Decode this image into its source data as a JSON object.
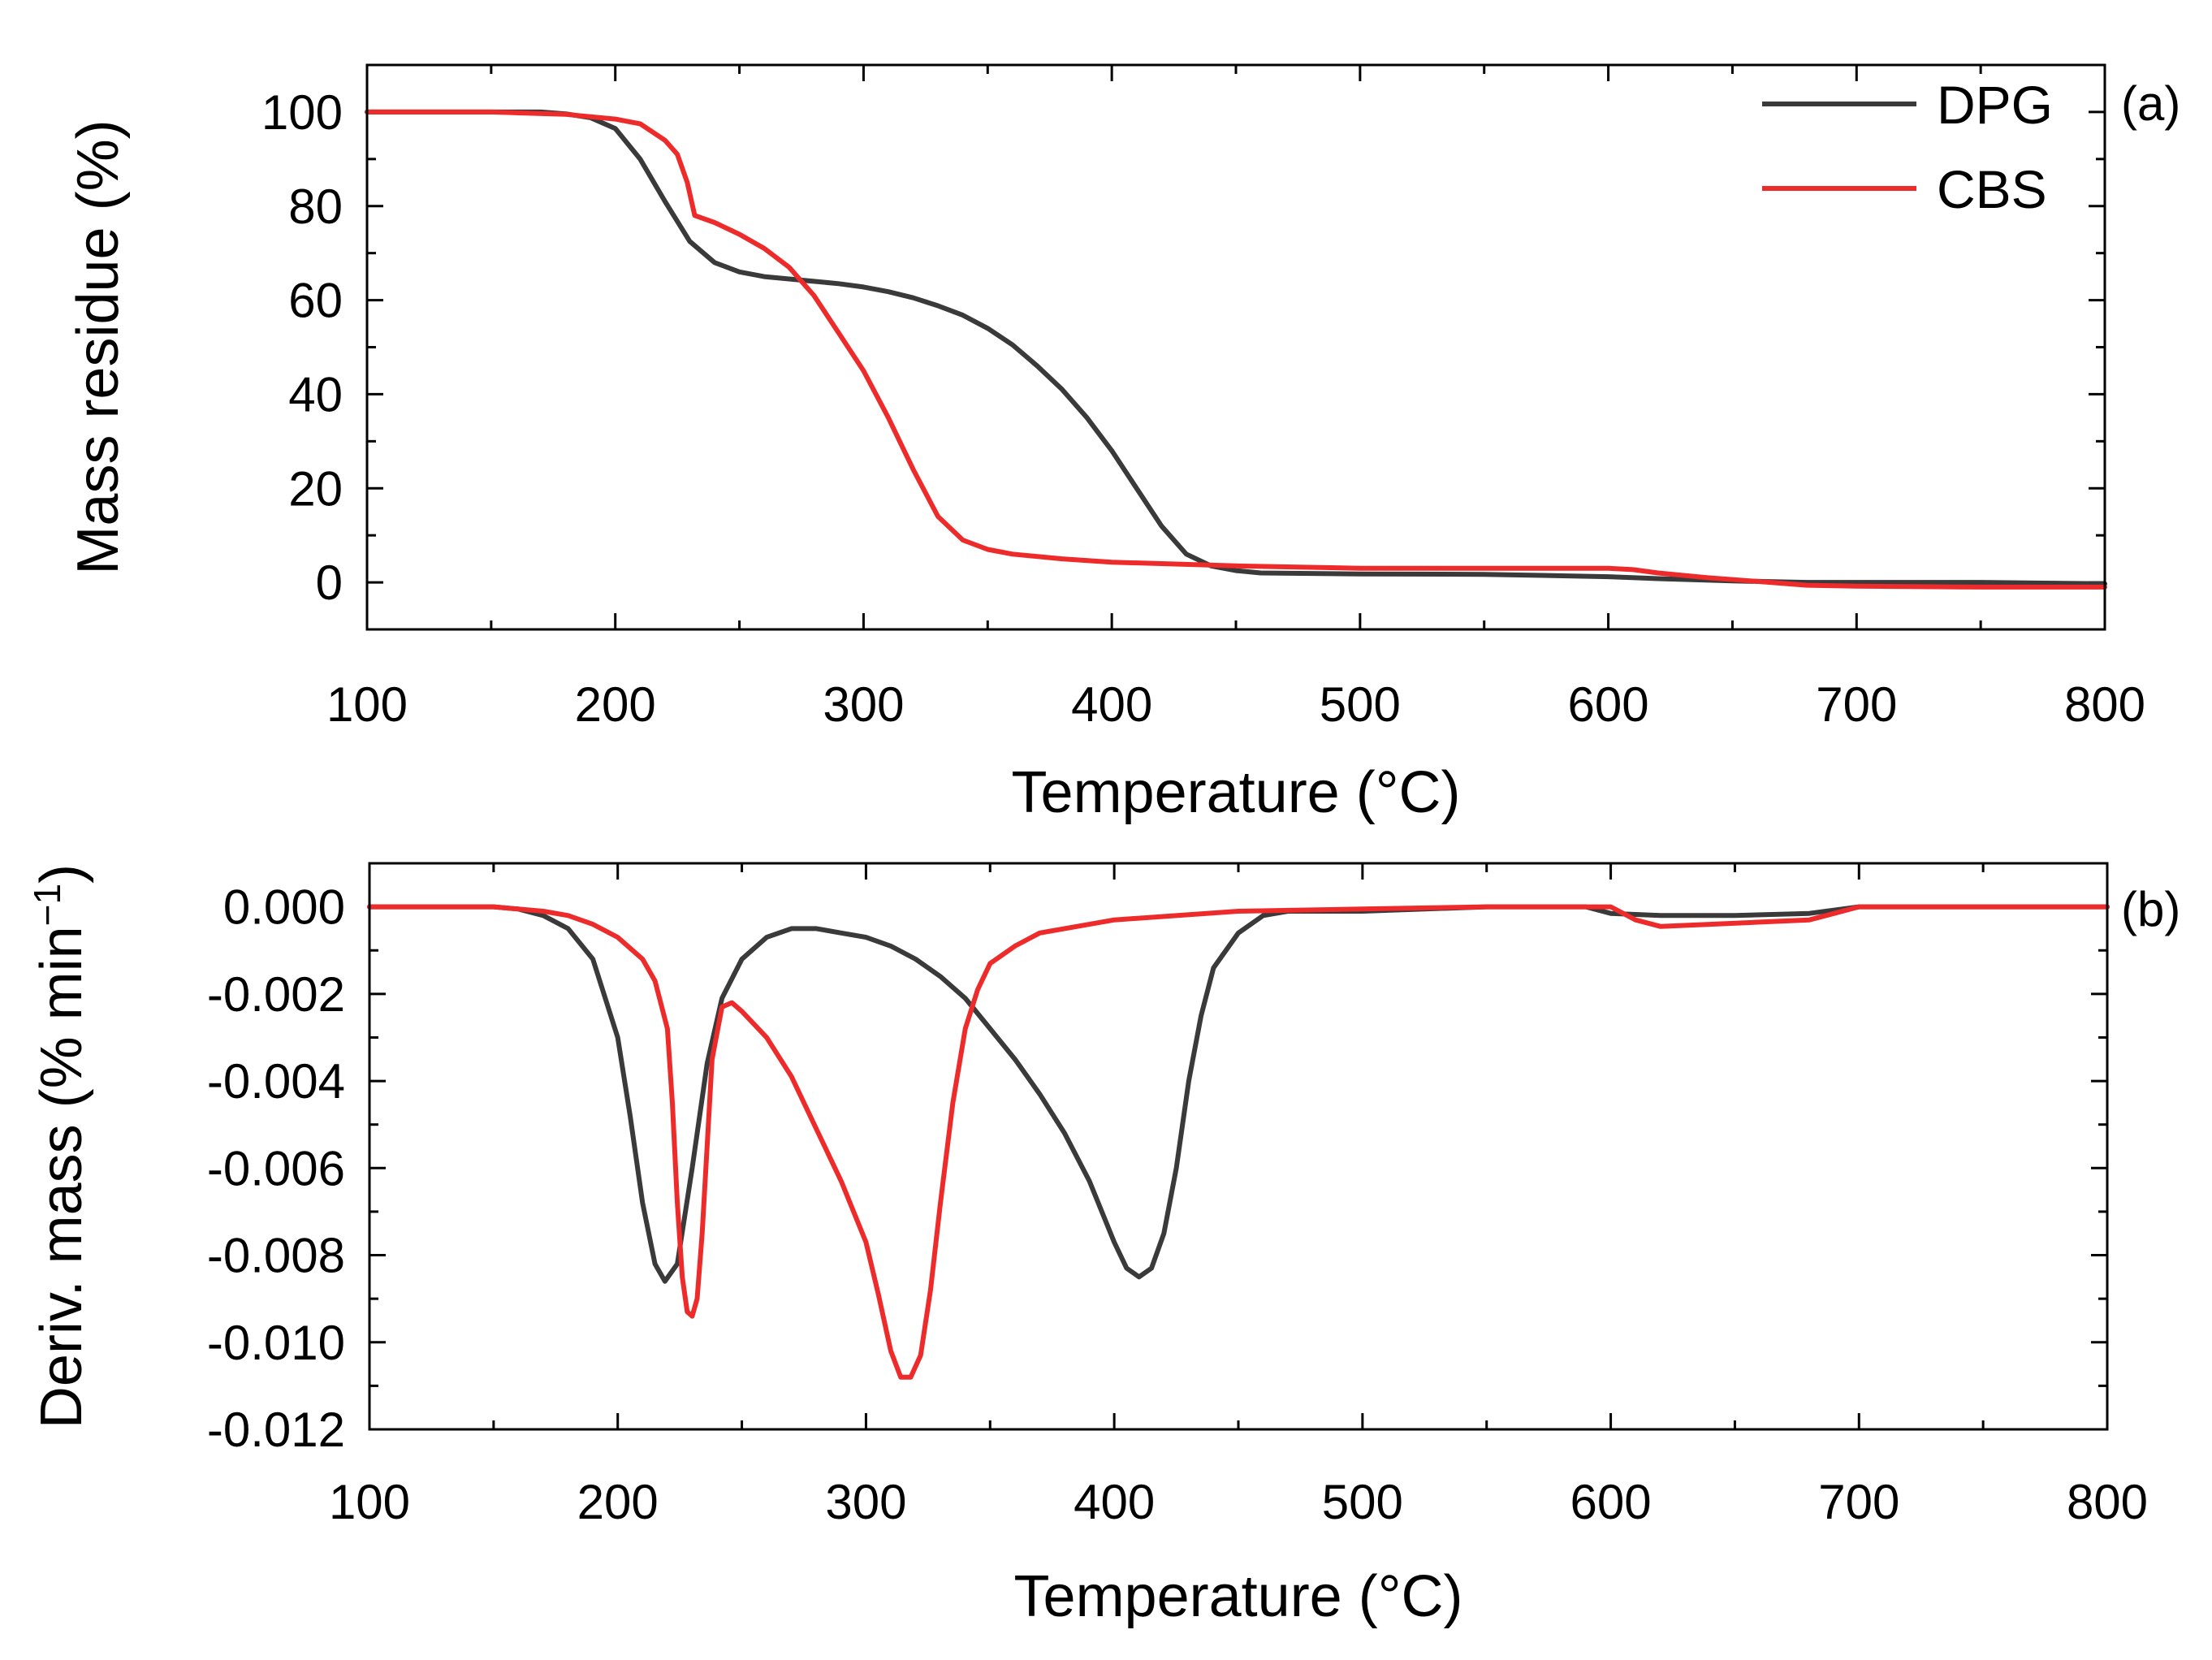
{
  "colors": {
    "DPG": "#3a3a3a",
    "CBS": "#ee2b2b",
    "axis": "#000000",
    "background": "#ffffff"
  },
  "chart_data": [
    {
      "type": "line",
      "panel_label": "(a)",
      "title": "",
      "xlabel": "Temperature (°C)",
      "ylabel": "Mass residue (%)",
      "xlim": [
        100,
        800
      ],
      "ylim": [
        -10,
        110
      ],
      "xticks": [
        100,
        200,
        300,
        400,
        500,
        600,
        700,
        800
      ],
      "yticks": [
        0,
        20,
        40,
        60,
        80,
        100
      ],
      "xtick_labels": [
        "100",
        "200",
        "300",
        "400",
        "500",
        "600",
        "700",
        "800"
      ],
      "ytick_labels": [
        "0",
        "20",
        "40",
        "60",
        "80",
        "100"
      ],
      "legend_position": "top-right",
      "series": [
        {
          "name": "DPG",
          "points": [
            [
              100,
              100
            ],
            [
              150,
              100
            ],
            [
              170,
              100
            ],
            [
              180,
              99.6
            ],
            [
              190,
              98.8
            ],
            [
              200,
              96.5
            ],
            [
              210,
              90
            ],
            [
              220,
              81
            ],
            [
              230,
              72.5
            ],
            [
              240,
              68
            ],
            [
              250,
              66
            ],
            [
              260,
              65
            ],
            [
              270,
              64.5
            ],
            [
              280,
              64
            ],
            [
              290,
              63.5
            ],
            [
              300,
              62.8
            ],
            [
              310,
              61.8
            ],
            [
              320,
              60.5
            ],
            [
              330,
              58.8
            ],
            [
              340,
              56.8
            ],
            [
              350,
              54
            ],
            [
              360,
              50.5
            ],
            [
              370,
              46
            ],
            [
              380,
              41
            ],
            [
              390,
              35
            ],
            [
              400,
              28
            ],
            [
              410,
              20
            ],
            [
              420,
              12
            ],
            [
              430,
              6
            ],
            [
              440,
              3.5
            ],
            [
              450,
              2.5
            ],
            [
              460,
              2
            ],
            [
              500,
              1.8
            ],
            [
              550,
              1.7
            ],
            [
              600,
              1.2
            ],
            [
              620,
              0.8
            ],
            [
              650,
              0.3
            ],
            [
              680,
              0
            ],
            [
              700,
              0
            ],
            [
              750,
              0
            ],
            [
              800,
              -0.3
            ]
          ]
        },
        {
          "name": "CBS",
          "points": [
            [
              100,
              100
            ],
            [
              150,
              100
            ],
            [
              180,
              99.5
            ],
            [
              200,
              98.5
            ],
            [
              210,
              97.5
            ],
            [
              220,
              94
            ],
            [
              225,
              91
            ],
            [
              229,
              85
            ],
            [
              232,
              78
            ],
            [
              240,
              76.5
            ],
            [
              250,
              74
            ],
            [
              260,
              71
            ],
            [
              270,
              67
            ],
            [
              280,
              61
            ],
            [
              290,
              53
            ],
            [
              300,
              45
            ],
            [
              310,
              35
            ],
            [
              320,
              24
            ],
            [
              330,
              14
            ],
            [
              340,
              9
            ],
            [
              350,
              7
            ],
            [
              360,
              6
            ],
            [
              380,
              5
            ],
            [
              400,
              4.3
            ],
            [
              450,
              3.5
            ],
            [
              500,
              3
            ],
            [
              550,
              3
            ],
            [
              600,
              3
            ],
            [
              610,
              2.7
            ],
            [
              620,
              2
            ],
            [
              640,
              1
            ],
            [
              660,
              0.2
            ],
            [
              680,
              -0.6
            ],
            [
              700,
              -0.8
            ],
            [
              750,
              -1
            ],
            [
              800,
              -1
            ]
          ]
        }
      ]
    },
    {
      "type": "line",
      "panel_label": "(b)",
      "title": "",
      "xlabel": "Temperature (°C)",
      "ylabel_main": "Deriv. mass (% min",
      "ylabel_superscript": "−1",
      "ylabel_close": ")",
      "xlim": [
        100,
        800
      ],
      "ylim": [
        -0.012,
        0.001
      ],
      "xticks": [
        100,
        200,
        300,
        400,
        500,
        600,
        700,
        800
      ],
      "yticks": [
        0,
        -0.002,
        -0.004,
        -0.006,
        -0.008,
        -0.01,
        -0.012
      ],
      "xtick_labels": [
        "100",
        "200",
        "300",
        "400",
        "500",
        "600",
        "700",
        "800"
      ],
      "ytick_labels": [
        "0.000",
        "-0.002",
        "-0.004",
        "-0.006",
        "-0.008",
        "-0.010",
        "-0.012"
      ],
      "series": [
        {
          "name": "DPG",
          "points": [
            [
              100,
              0
            ],
            [
              150,
              0
            ],
            [
              160,
              -5e-05
            ],
            [
              170,
              -0.0002
            ],
            [
              180,
              -0.0005
            ],
            [
              190,
              -0.0012
            ],
            [
              200,
              -0.003
            ],
            [
              205,
              -0.0048
            ],
            [
              210,
              -0.0068
            ],
            [
              215,
              -0.0082
            ],
            [
              219,
              -0.0086
            ],
            [
              224,
              -0.0082
            ],
            [
              230,
              -0.006
            ],
            [
              236,
              -0.0036
            ],
            [
              242,
              -0.0021
            ],
            [
              250,
              -0.0012
            ],
            [
              260,
              -0.0007
            ],
            [
              270,
              -0.0005
            ],
            [
              280,
              -0.0005
            ],
            [
              290,
              -0.0006
            ],
            [
              300,
              -0.0007
            ],
            [
              310,
              -0.0009
            ],
            [
              320,
              -0.0012
            ],
            [
              330,
              -0.0016
            ],
            [
              340,
              -0.0021
            ],
            [
              350,
              -0.0028
            ],
            [
              360,
              -0.0035
            ],
            [
              370,
              -0.0043
            ],
            [
              380,
              -0.0052
            ],
            [
              390,
              -0.0063
            ],
            [
              400,
              -0.0077
            ],
            [
              405,
              -0.0083
            ],
            [
              410,
              -0.0085
            ],
            [
              415,
              -0.0083
            ],
            [
              420,
              -0.0075
            ],
            [
              425,
              -0.006
            ],
            [
              430,
              -0.004
            ],
            [
              435,
              -0.0025
            ],
            [
              440,
              -0.0014
            ],
            [
              450,
              -0.0006
            ],
            [
              460,
              -0.0002
            ],
            [
              470,
              -0.0001
            ],
            [
              500,
              -0.0001
            ],
            [
              550,
              0
            ],
            [
              590,
              0
            ],
            [
              600,
              -0.00015
            ],
            [
              620,
              -0.0002
            ],
            [
              650,
              -0.0002
            ],
            [
              680,
              -0.00015
            ],
            [
              700,
              0
            ],
            [
              750,
              0
            ],
            [
              800,
              0
            ]
          ]
        },
        {
          "name": "CBS",
          "points": [
            [
              100,
              0
            ],
            [
              150,
              0
            ],
            [
              170,
              -0.0001
            ],
            [
              180,
              -0.0002
            ],
            [
              190,
              -0.0004
            ],
            [
              200,
              -0.0007
            ],
            [
              210,
              -0.0012
            ],
            [
              215,
              -0.0017
            ],
            [
              220,
              -0.0028
            ],
            [
              222,
              -0.0045
            ],
            [
              224,
              -0.0068
            ],
            [
              226,
              -0.0085
            ],
            [
              228,
              -0.0093
            ],
            [
              230,
              -0.0094
            ],
            [
              232,
              -0.009
            ],
            [
              234,
              -0.0075
            ],
            [
              236,
              -0.0055
            ],
            [
              238,
              -0.0035
            ],
            [
              242,
              -0.0023
            ],
            [
              246,
              -0.0022
            ],
            [
              250,
              -0.0024
            ],
            [
              260,
              -0.003
            ],
            [
              270,
              -0.0039
            ],
            [
              280,
              -0.0051
            ],
            [
              290,
              -0.0063
            ],
            [
              300,
              -0.0077
            ],
            [
              305,
              -0.0089
            ],
            [
              310,
              -0.0102
            ],
            [
              314,
              -0.0108
            ],
            [
              318,
              -0.0108
            ],
            [
              322,
              -0.0103
            ],
            [
              326,
              -0.0088
            ],
            [
              330,
              -0.0068
            ],
            [
              335,
              -0.0045
            ],
            [
              340,
              -0.0028
            ],
            [
              345,
              -0.0019
            ],
            [
              350,
              -0.0013
            ],
            [
              360,
              -0.0009
            ],
            [
              370,
              -0.0006
            ],
            [
              380,
              -0.0005
            ],
            [
              400,
              -0.0003
            ],
            [
              450,
              -0.0001
            ],
            [
              500,
              -5e-05
            ],
            [
              550,
              0
            ],
            [
              600,
              0
            ],
            [
              610,
              -0.0003
            ],
            [
              620,
              -0.00045
            ],
            [
              640,
              -0.0004
            ],
            [
              660,
              -0.00035
            ],
            [
              680,
              -0.0003
            ],
            [
              690,
              -0.00015
            ],
            [
              700,
              0
            ],
            [
              750,
              0
            ],
            [
              800,
              0
            ]
          ]
        }
      ]
    }
  ]
}
